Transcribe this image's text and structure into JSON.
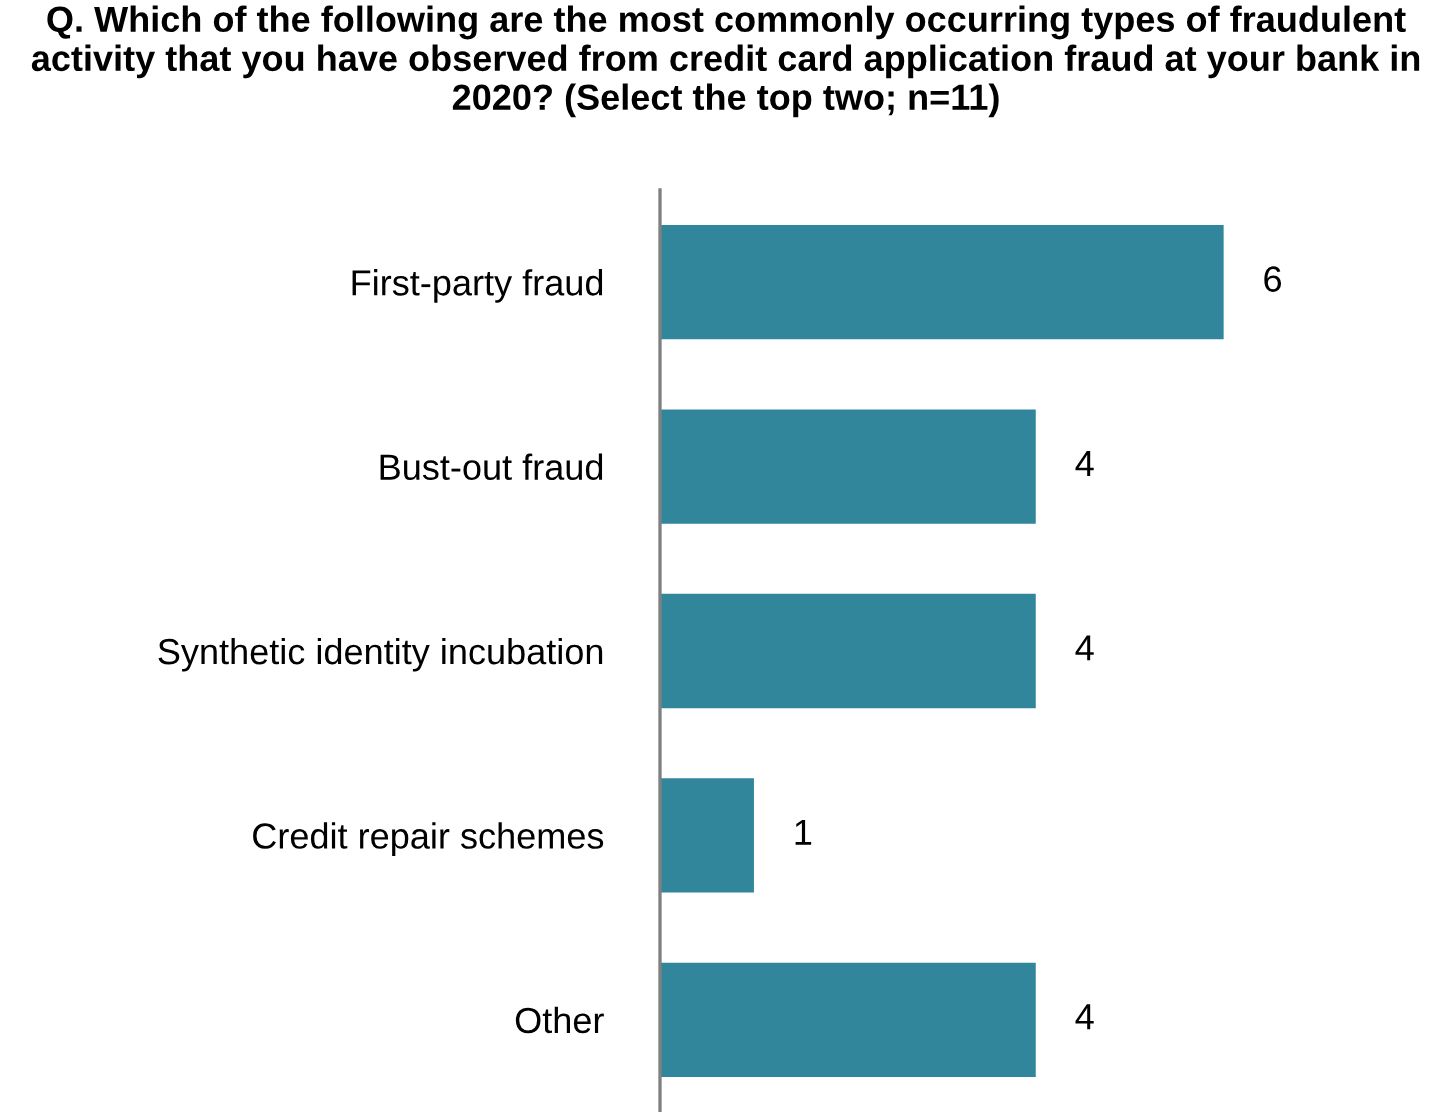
{
  "chart_data": {
    "type": "bar",
    "orientation": "horizontal",
    "title": "Q. Which of the following are the most commonly occurring types of fraudulent activity that you have observed from credit card application fraud at your bank in 2020? (Select the top two; n=11)",
    "categories": [
      "First-party fraud",
      "Bust-out fraud",
      "Synthetic identity incubation",
      "Credit repair schemes",
      "Other"
    ],
    "values": [
      6,
      4,
      4,
      1,
      4
    ],
    "color": "#31869b",
    "data_labels": true,
    "grid": false,
    "legend": false
  }
}
